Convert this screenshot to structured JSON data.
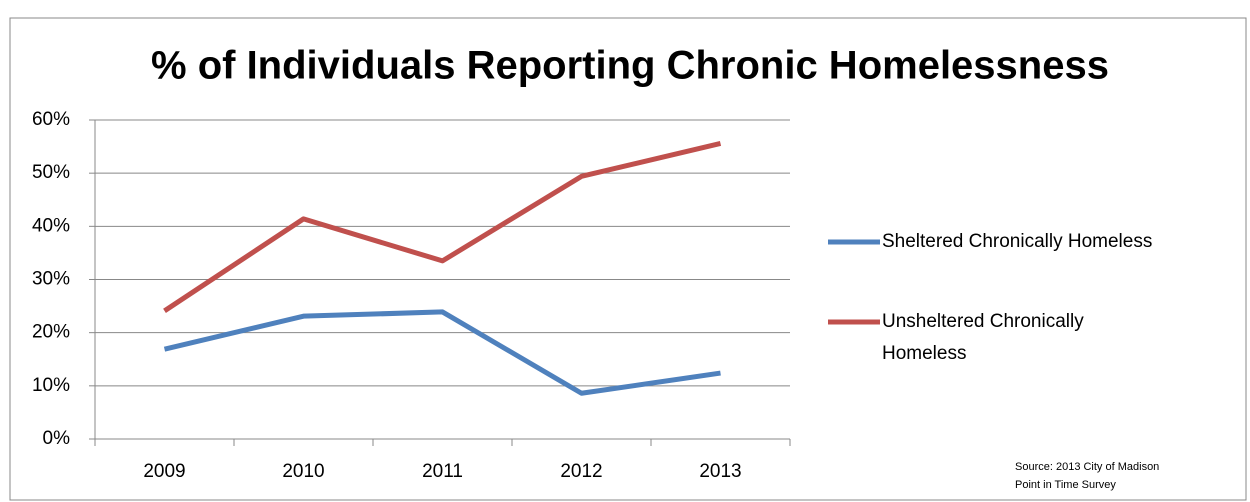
{
  "chart_data": {
    "type": "line",
    "title": "% of Individuals Reporting Chronic Homelessness",
    "categories": [
      "2009",
      "2010",
      "2011",
      "2012",
      "2013"
    ],
    "series": [
      {
        "name": "Sheltered Chronically Homeless",
        "color": "#4f81bd",
        "values": [
          16.9,
          23.1,
          23.9,
          8.6,
          12.4
        ]
      },
      {
        "name": "Unsheltered Chronically Homeless",
        "color": "#c0504d",
        "values": [
          24.1,
          41.4,
          33.5,
          49.4,
          55.6
        ]
      }
    ],
    "ylim": [
      0,
      60
    ],
    "yticks": [
      {
        "value": 0,
        "label": "0%"
      },
      {
        "value": 10,
        "label": "10%"
      },
      {
        "value": 20,
        "label": "20%"
      },
      {
        "value": 30,
        "label": "30%"
      },
      {
        "value": 40,
        "label": "40%"
      },
      {
        "value": 50,
        "label": "50%"
      },
      {
        "value": 60,
        "label": "60%"
      }
    ],
    "grid": true,
    "legend": "right",
    "annotation": [
      "Source: 2013 City of Madison",
      "Point in Time Survey"
    ]
  }
}
